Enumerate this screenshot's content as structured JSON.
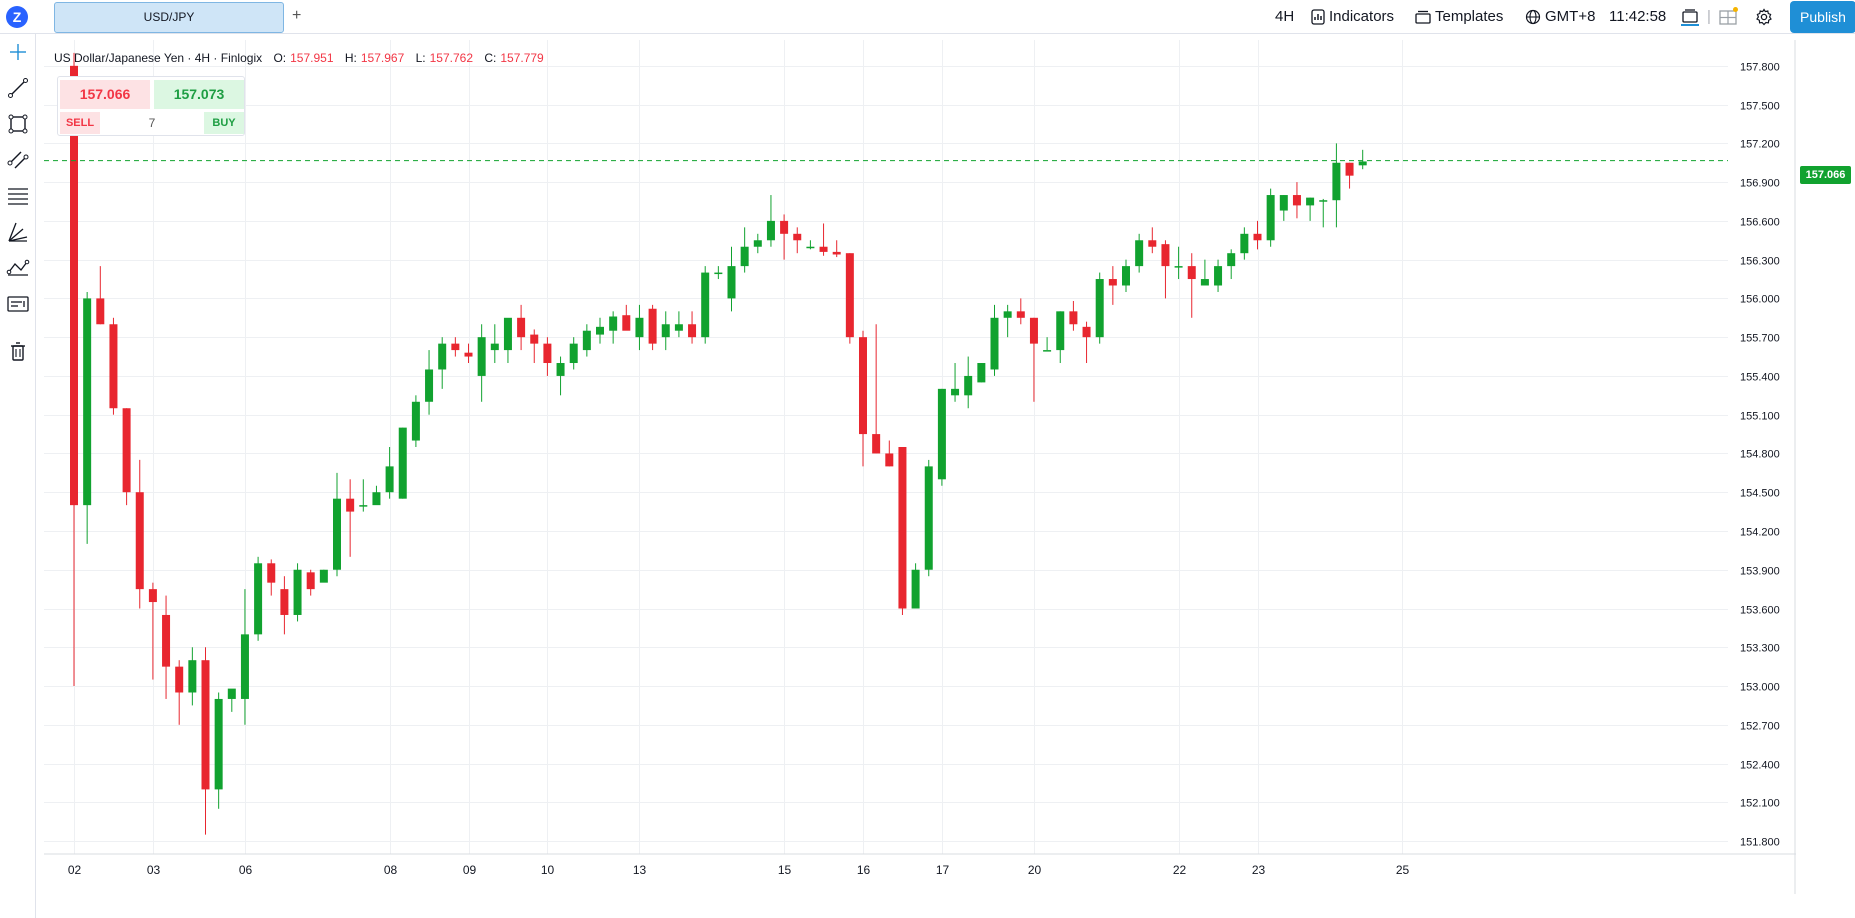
{
  "header": {
    "logo_letter": "Z",
    "symbol_tab": "USD/JPY",
    "add_tab": "+",
    "interval": "4H",
    "indicators_label": "Indicators",
    "templates_label": "Templates",
    "timezone": "GMT+8",
    "clock": "11:42:58",
    "publish_label": "Publish"
  },
  "legend": {
    "title": "US Dollar/Japanese Yen · 4H · Finlogix",
    "o_label": "O:",
    "o_value": "157.951",
    "h_label": "H:",
    "h_value": "157.967",
    "l_label": "L:",
    "l_value": "157.762",
    "c_label": "C:",
    "c_value": "157.779"
  },
  "trade": {
    "sell_price": "157.066",
    "buy_price": "157.073",
    "sell_label": "SELL",
    "buy_label": "BUY",
    "quantity": "7"
  },
  "left_toolbar": [
    "crosshair-icon",
    "trendline-icon",
    "rectangle-icon",
    "channel-icon",
    "fib-icon",
    "pitchfork-icon",
    "pattern-icon",
    "text-note-icon",
    "trash-icon"
  ],
  "colors": {
    "up": "#11a22f",
    "down": "#e8262f",
    "accent": "#1f8fd6",
    "grid": "#eef0f3"
  },
  "chart_data": {
    "type": "candlestick",
    "current_price": "157.066",
    "ylim": [
      151.7,
      158.0
    ],
    "y_ticks": [
      "157.800",
      "157.500",
      "157.200",
      "156.900",
      "156.600",
      "156.300",
      "156.000",
      "155.700",
      "155.400",
      "155.100",
      "154.800",
      "154.500",
      "154.200",
      "153.900",
      "153.600",
      "153.300",
      "153.000",
      "152.700",
      "152.400",
      "152.100",
      "151.800"
    ],
    "x_ticks": [
      {
        "i": 0,
        "label": "02"
      },
      {
        "i": 6,
        "label": "03"
      },
      {
        "i": 13,
        "label": "06"
      },
      {
        "i": 24,
        "label": "08"
      },
      {
        "i": 30,
        "label": "09"
      },
      {
        "i": 36,
        "label": "10"
      },
      {
        "i": 43,
        "label": "13"
      },
      {
        "i": 54,
        "label": "15"
      },
      {
        "i": 60,
        "label": "16"
      },
      {
        "i": 66,
        "label": "17"
      },
      {
        "i": 73,
        "label": "20"
      },
      {
        "i": 84,
        "label": "22"
      },
      {
        "i": 90,
        "label": "23"
      },
      {
        "i": 101,
        "label": "25"
      }
    ],
    "candles": [
      [
        157.8,
        157.9,
        153.0,
        154.4
      ],
      [
        154.4,
        156.05,
        154.1,
        156.0
      ],
      [
        156.0,
        156.25,
        155.8,
        155.8
      ],
      [
        155.8,
        155.85,
        155.1,
        155.15
      ],
      [
        155.15,
        155.15,
        154.4,
        154.5
      ],
      [
        154.5,
        154.75,
        153.6,
        153.75
      ],
      [
        153.75,
        153.8,
        153.05,
        153.65
      ],
      [
        153.55,
        153.7,
        152.9,
        153.15
      ],
      [
        153.15,
        153.2,
        152.7,
        152.95
      ],
      [
        152.95,
        153.3,
        152.85,
        153.2
      ],
      [
        153.2,
        153.3,
        151.85,
        152.2
      ],
      [
        152.2,
        152.95,
        152.05,
        152.9
      ],
      [
        152.9,
        152.95,
        152.8,
        152.98
      ],
      [
        152.9,
        153.75,
        152.7,
        153.4
      ],
      [
        153.4,
        154.0,
        153.35,
        153.95
      ],
      [
        153.95,
        153.98,
        153.7,
        153.8
      ],
      [
        153.75,
        153.85,
        153.4,
        153.55
      ],
      [
        153.55,
        153.95,
        153.5,
        153.9
      ],
      [
        153.88,
        153.9,
        153.7,
        153.75
      ],
      [
        153.8,
        153.9,
        153.85,
        153.9
      ],
      [
        153.9,
        154.65,
        153.85,
        154.45
      ],
      [
        154.45,
        154.6,
        154.0,
        154.35
      ],
      [
        154.4,
        154.6,
        154.35,
        154.4
      ],
      [
        154.4,
        154.55,
        154.45,
        154.5
      ],
      [
        154.5,
        154.85,
        154.45,
        154.7
      ],
      [
        154.45,
        155.0,
        154.45,
        155.0
      ],
      [
        154.9,
        155.25,
        154.85,
        155.2
      ],
      [
        155.2,
        155.6,
        155.1,
        155.45
      ],
      [
        155.45,
        155.7,
        155.3,
        155.65
      ],
      [
        155.65,
        155.7,
        155.55,
        155.6
      ],
      [
        155.58,
        155.65,
        155.5,
        155.55
      ],
      [
        155.4,
        155.8,
        155.2,
        155.7
      ],
      [
        155.6,
        155.8,
        155.5,
        155.65
      ],
      [
        155.6,
        155.8,
        155.5,
        155.85
      ],
      [
        155.85,
        155.95,
        155.6,
        155.7
      ],
      [
        155.72,
        155.76,
        155.5,
        155.65
      ],
      [
        155.65,
        155.7,
        155.4,
        155.5
      ],
      [
        155.4,
        155.55,
        155.25,
        155.5
      ],
      [
        155.5,
        155.7,
        155.45,
        155.65
      ],
      [
        155.6,
        155.8,
        155.55,
        155.75
      ],
      [
        155.72,
        155.85,
        155.65,
        155.78
      ],
      [
        155.75,
        155.9,
        155.65,
        155.86
      ],
      [
        155.87,
        155.95,
        155.8,
        155.75
      ],
      [
        155.7,
        155.95,
        155.6,
        155.85
      ],
      [
        155.92,
        155.95,
        155.6,
        155.65
      ],
      [
        155.7,
        155.9,
        155.6,
        155.8
      ],
      [
        155.75,
        155.9,
        155.7,
        155.8
      ],
      [
        155.8,
        155.9,
        155.65,
        155.7
      ],
      [
        155.7,
        156.25,
        155.65,
        156.2
      ],
      [
        156.2,
        156.25,
        156.15,
        156.2
      ],
      [
        156.0,
        156.4,
        155.9,
        156.25
      ],
      [
        156.25,
        156.55,
        156.2,
        156.4
      ],
      [
        156.4,
        156.5,
        156.35,
        156.45
      ],
      [
        156.45,
        156.8,
        156.4,
        156.6
      ],
      [
        156.6,
        156.65,
        156.3,
        156.5
      ],
      [
        156.5,
        156.55,
        156.35,
        156.45
      ],
      [
        156.4,
        156.45,
        156.38,
        156.4
      ],
      [
        156.4,
        156.58,
        156.33,
        156.36
      ],
      [
        156.36,
        156.45,
        156.32,
        156.34
      ],
      [
        156.35,
        156.35,
        155.65,
        155.7
      ],
      [
        155.7,
        155.75,
        154.7,
        154.95
      ],
      [
        154.95,
        155.8,
        154.8,
        154.8
      ],
      [
        154.8,
        154.9,
        154.7,
        154.7
      ],
      [
        154.85,
        154.85,
        153.55,
        153.6
      ],
      [
        153.6,
        153.95,
        153.6,
        153.9
      ],
      [
        153.9,
        154.75,
        153.85,
        154.7
      ],
      [
        154.6,
        155.3,
        154.55,
        155.3
      ],
      [
        155.25,
        155.5,
        155.2,
        155.3
      ],
      [
        155.25,
        155.55,
        155.15,
        155.4
      ],
      [
        155.35,
        155.5,
        155.35,
        155.5
      ],
      [
        155.45,
        155.95,
        155.4,
        155.85
      ],
      [
        155.85,
        155.95,
        155.7,
        155.9
      ],
      [
        155.9,
        156.0,
        155.8,
        155.85
      ],
      [
        155.85,
        155.85,
        155.2,
        155.65
      ],
      [
        155.6,
        155.7,
        155.6,
        155.6
      ],
      [
        155.6,
        155.9,
        155.5,
        155.9
      ],
      [
        155.9,
        155.98,
        155.75,
        155.8
      ],
      [
        155.78,
        155.82,
        155.5,
        155.7
      ],
      [
        155.7,
        156.2,
        155.65,
        156.15
      ],
      [
        156.15,
        156.25,
        155.95,
        156.1
      ],
      [
        156.1,
        156.3,
        156.05,
        156.25
      ],
      [
        156.25,
        156.5,
        156.2,
        156.45
      ],
      [
        156.45,
        156.55,
        156.35,
        156.4
      ],
      [
        156.42,
        156.45,
        156.0,
        156.25
      ],
      [
        156.25,
        156.4,
        156.15,
        156.25
      ],
      [
        156.25,
        156.35,
        155.85,
        156.15
      ],
      [
        156.1,
        156.3,
        156.1,
        156.15
      ],
      [
        156.1,
        156.3,
        156.05,
        156.25
      ],
      [
        156.25,
        156.38,
        156.15,
        156.35
      ],
      [
        156.35,
        156.55,
        156.3,
        156.5
      ],
      [
        156.5,
        156.6,
        156.38,
        156.45
      ],
      [
        156.45,
        156.85,
        156.4,
        156.8
      ],
      [
        156.68,
        156.8,
        156.6,
        156.8
      ],
      [
        156.8,
        156.9,
        156.62,
        156.72
      ],
      [
        156.72,
        156.78,
        156.6,
        156.78
      ],
      [
        156.75,
        156.77,
        156.55,
        156.76
      ],
      [
        156.76,
        157.2,
        156.55,
        157.05
      ],
      [
        157.05,
        157.05,
        156.85,
        156.95
      ],
      [
        157.03,
        157.15,
        157.0,
        157.06
      ]
    ]
  }
}
